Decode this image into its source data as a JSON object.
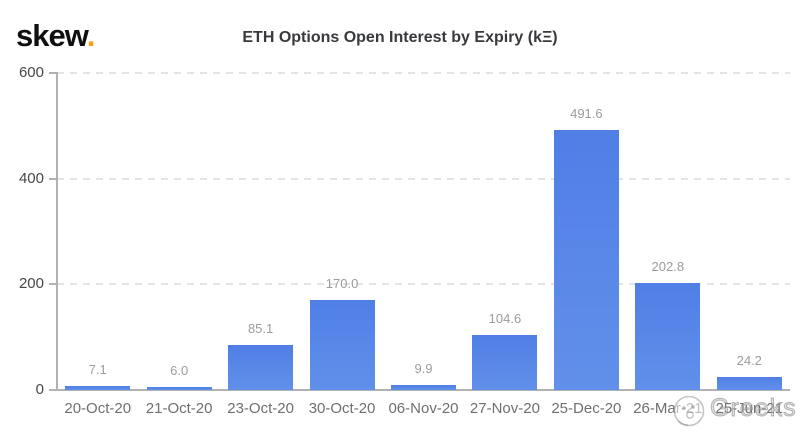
{
  "logo": {
    "text": "skew",
    "dot": "."
  },
  "title": "ETH Options Open Interest by Expiry (kΞ)",
  "watermark": {
    "text": "Greeks",
    "icon": "face-logo-icon"
  },
  "colors": {
    "bar_gradient_top": "#4f7fe5",
    "bar_gradient_bottom": "#6190ea",
    "accent_dot": "#f2a20d",
    "grid_line": "#e4e4e4",
    "axis_line": "#b2b2b2",
    "value_label": "#9c9c9c",
    "x_label": "#6f6f6f",
    "y_label": "#474747",
    "title_text": "#37393c",
    "watermark_gray": "#a9a9a9"
  },
  "chart_data": {
    "type": "bar",
    "title": "ETH Options Open Interest by Expiry (kΞ)",
    "categories": [
      "20-Oct-20",
      "21-Oct-20",
      "23-Oct-20",
      "30-Oct-20",
      "06-Nov-20",
      "27-Nov-20",
      "25-Dec-20",
      "26-Mar-21",
      "25-Jun-21"
    ],
    "values": [
      7.1,
      6.0,
      85.1,
      170.0,
      9.9,
      104.6,
      491.6,
      202.8,
      24.2
    ],
    "value_labels": [
      "7.1",
      "6.0",
      "85.1",
      "170.0",
      "9.9",
      "104.6",
      "491.6",
      "202.8",
      "24.2"
    ],
    "xlabel": "",
    "ylabel": "",
    "ylim": [
      0,
      600
    ],
    "yticks": [
      0,
      200,
      400,
      600
    ],
    "ytick_labels": [
      "0",
      "200",
      "400",
      "600"
    ],
    "grid": "horizontal-dashed",
    "legend": "none"
  }
}
